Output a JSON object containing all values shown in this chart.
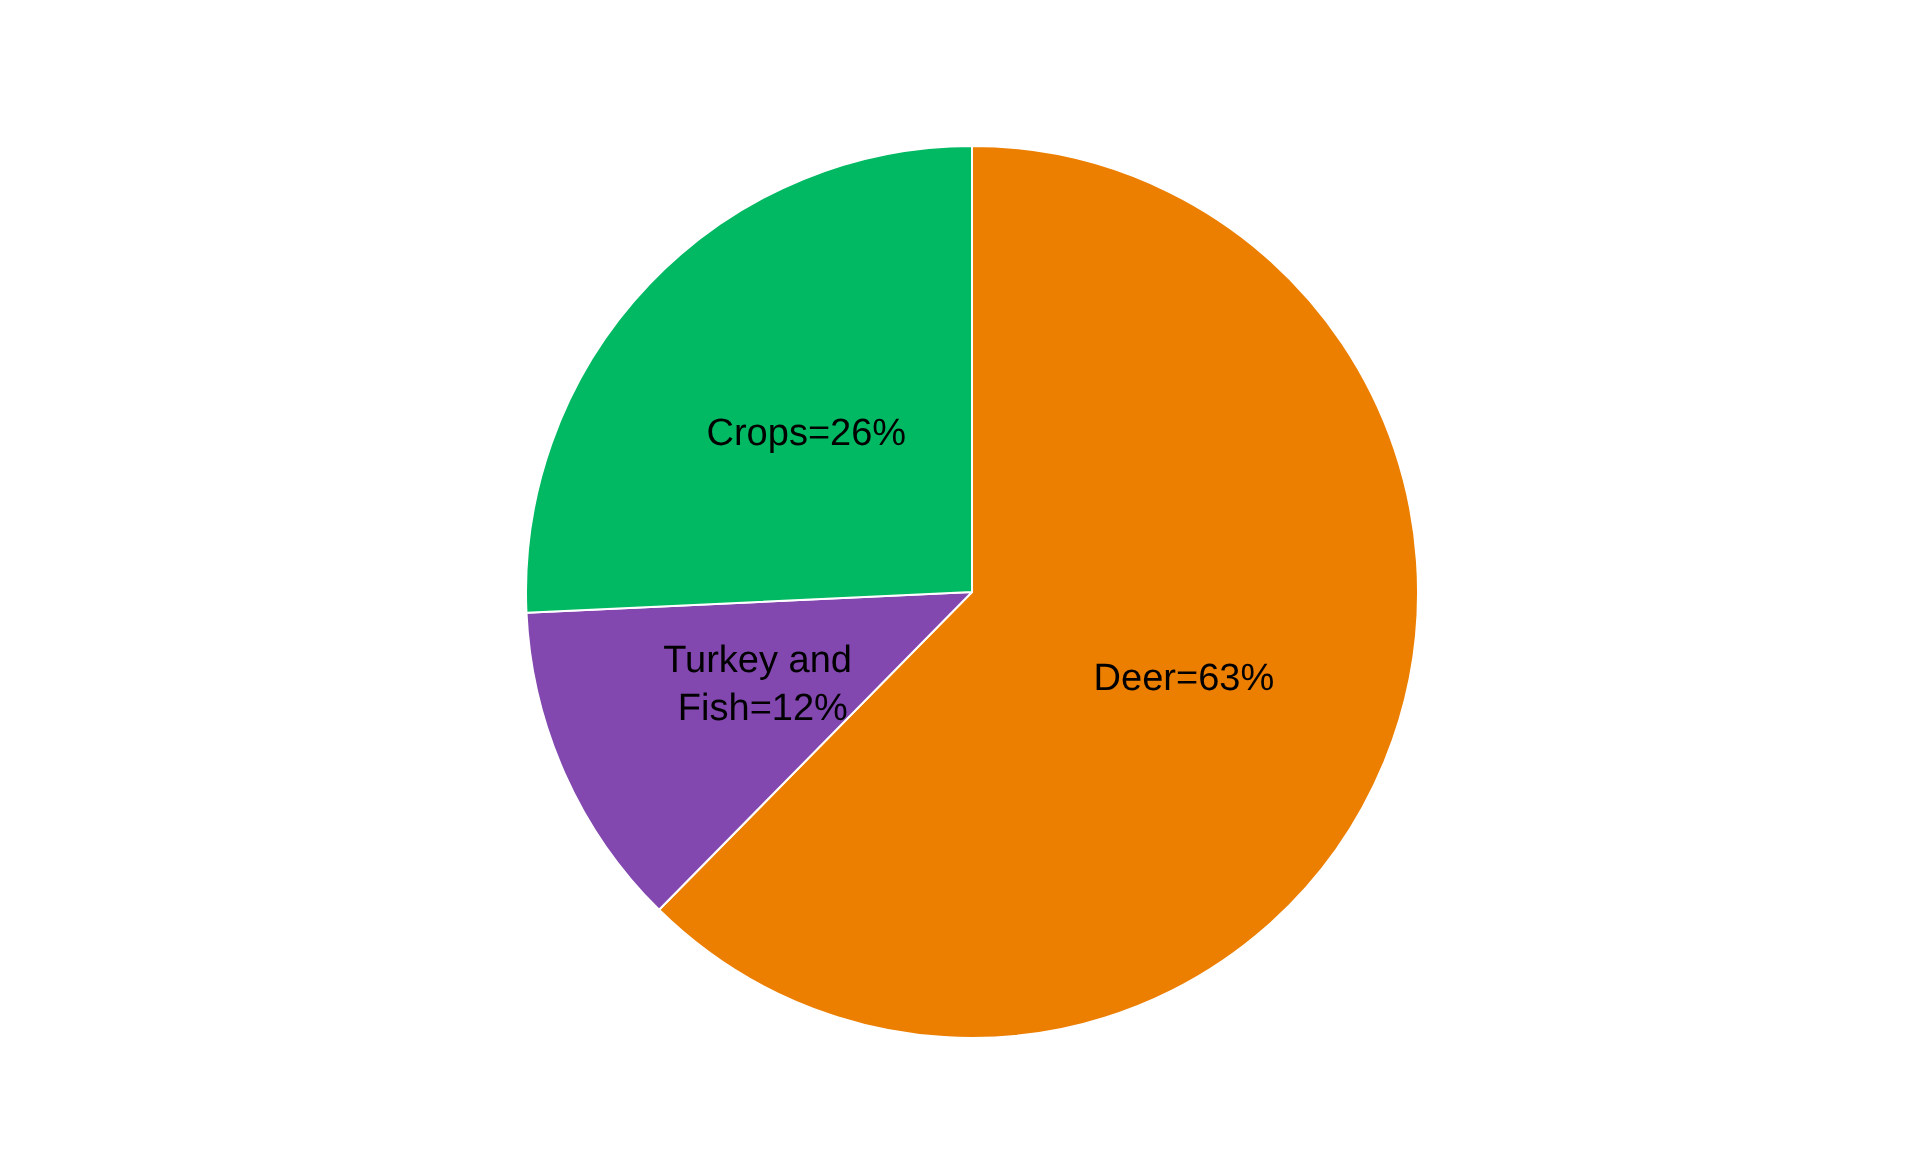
{
  "chart_data": {
    "type": "pie",
    "categories": [
      "Deer",
      "Turkey and Fish",
      "Crops"
    ],
    "values": [
      63,
      12,
      26
    ],
    "colors": [
      "#ec7e00",
      "#8347b0",
      "#00b962"
    ],
    "value_labels": [
      "=63%",
      "=12%",
      "=26%"
    ],
    "legend": false
  }
}
